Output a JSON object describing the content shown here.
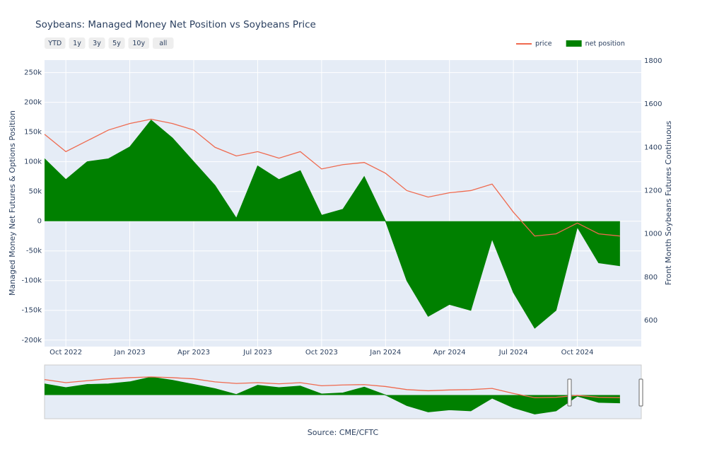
{
  "chart_data": {
    "type": "line-area",
    "title": "Soybeans: Managed Money Net Position vs Soybeans Price",
    "y_label": "Managed Money Net Futures & Options Position",
    "y2_label": "Front Month Soybeans Futures Continuous",
    "source": "Source: CME/CFTC",
    "buttons": [
      "YTD",
      "1y",
      "3y",
      "5y",
      "10y",
      "all"
    ],
    "legend": "top-right",
    "grid": true,
    "x": [
      "2022-09",
      "2022-10",
      "2022-11",
      "2022-12",
      "2023-01",
      "2023-02",
      "2023-03",
      "2023-04",
      "2023-05",
      "2023-06",
      "2023-07",
      "2023-08",
      "2023-09",
      "2023-10",
      "2023-11",
      "2023-12",
      "2024-01",
      "2024-02",
      "2024-03",
      "2024-04",
      "2024-05",
      "2024-06",
      "2024-07",
      "2024-08",
      "2024-09",
      "2024-10",
      "2024-11",
      "2024-12"
    ],
    "xlim": [
      "2022-09",
      "2024-12"
    ],
    "xticks": [
      {
        "value": "2022-10",
        "label": "Oct 2022"
      },
      {
        "value": "2023-01",
        "label": "Jan 2023"
      },
      {
        "value": "2023-04",
        "label": "Apr 2023"
      },
      {
        "value": "2023-07",
        "label": "Jul 2023"
      },
      {
        "value": "2023-10",
        "label": "Oct 2023"
      },
      {
        "value": "2024-01",
        "label": "Jan 2024"
      },
      {
        "value": "2024-04",
        "label": "Apr 2024"
      },
      {
        "value": "2024-07",
        "label": "Jul 2024"
      },
      {
        "value": "2024-10",
        "label": "Oct 2024"
      }
    ],
    "ylim": [
      -211000,
      271000
    ],
    "yticks": [
      {
        "value": -200000,
        "label": "-200k"
      },
      {
        "value": -150000,
        "label": "-150k"
      },
      {
        "value": -100000,
        "label": "-100k"
      },
      {
        "value": -50000,
        "label": "-50k"
      },
      0,
      {
        "value": 50000,
        "label": "50k"
      },
      {
        "value": 100000,
        "label": "100k"
      },
      {
        "value": 150000,
        "label": "150k"
      },
      {
        "value": 200000,
        "label": "200k"
      },
      {
        "value": 250000,
        "label": "250k"
      }
    ],
    "y2lim": [
      479,
      1803
    ],
    "y2ticks": [
      600,
      800,
      1000,
      1200,
      1400,
      1600,
      1800
    ],
    "series": [
      {
        "name": "net position",
        "kind": "area",
        "color": "#008000",
        "values": [
          105000,
          70000,
          100000,
          105000,
          125000,
          170000,
          140000,
          100000,
          60000,
          5000,
          93000,
          70000,
          85000,
          10000,
          20000,
          75000,
          0,
          -100000,
          -160000,
          -140000,
          -150000,
          -30000,
          -120000,
          -180000,
          -150000,
          -10000,
          -70000,
          -75000
        ]
      },
      {
        "name": "price",
        "kind": "line",
        "color": "#ef6a4f",
        "axis": "y2",
        "values": [
          1460,
          1380,
          1430,
          1480,
          1510,
          1530,
          1510,
          1480,
          1400,
          1360,
          1380,
          1350,
          1380,
          1300,
          1320,
          1330,
          1280,
          1200,
          1170,
          1190,
          1200,
          1230,
          1100,
          990,
          1000,
          1050,
          1000,
          990
        ]
      }
    ]
  }
}
